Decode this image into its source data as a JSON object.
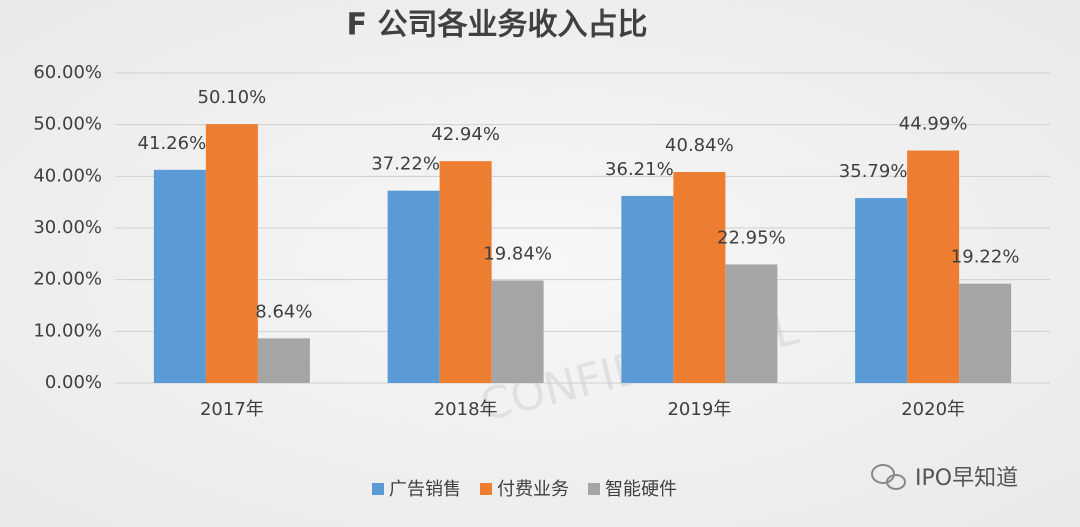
{
  "chart_data": {
    "type": "bar",
    "title": "F 公司各业务收入占比",
    "categories": [
      "2017年",
      "2018年",
      "2019年",
      "2020年"
    ],
    "series": [
      {
        "name": "广告销售",
        "color": "#5b9bd5",
        "values": [
          41.26,
          37.22,
          36.21,
          35.79
        ],
        "value_labels": [
          "41.26%",
          "37.22%",
          "36.21%",
          "35.79%"
        ]
      },
      {
        "name": "付费业务",
        "color": "#ed7d31",
        "values": [
          50.1,
          42.94,
          40.84,
          44.99
        ],
        "value_labels": [
          "50.10%",
          "42.94%",
          "40.84%",
          "44.99%"
        ]
      },
      {
        "name": "智能硬件",
        "color": "#a5a5a5",
        "values": [
          8.64,
          19.84,
          22.95,
          19.22
        ],
        "value_labels": [
          "8.64%",
          "19.84%",
          "22.95%",
          "19.22%"
        ]
      }
    ],
    "ylim": [
      0,
      60
    ],
    "yticks": [
      {
        "value": 0,
        "label": "0.00%"
      },
      {
        "value": 10,
        "label": "10.00%"
      },
      {
        "value": 20,
        "label": "20.00%"
      },
      {
        "value": 30,
        "label": "30.00%"
      },
      {
        "value": 40,
        "label": "40.00%"
      },
      {
        "value": 50,
        "label": "50.00%"
      },
      {
        "value": 60,
        "label": "60.00%"
      }
    ],
    "grid": true,
    "legend": "bottom",
    "annotations": [
      "CONFIDENTIAL",
      "IPO早知道"
    ]
  }
}
